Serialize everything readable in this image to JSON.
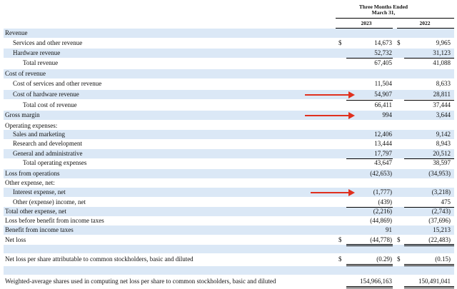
{
  "header": {
    "period_line1": "Three Months Ended",
    "period_line2": "March 31,",
    "year1": "2023",
    "year2": "2022"
  },
  "rows": [
    {
      "label": "Revenue",
      "indent": 0,
      "v1": "",
      "v2": "",
      "shade": true
    },
    {
      "label": "Services and other revenue",
      "indent": 1,
      "v1": "14,673",
      "v2": "9,965",
      "cur1": "$",
      "cur2": "$",
      "shade": false
    },
    {
      "label": "Hardware revenue",
      "indent": 1,
      "v1": "52,732",
      "v2": "31,123",
      "shade": true
    },
    {
      "label": "Total revenue",
      "indent": 2,
      "v1": "67,405",
      "v2": "41,088",
      "shade": false
    },
    {
      "label": "Cost of revenue",
      "indent": 0,
      "v1": "",
      "v2": "",
      "shade": true
    },
    {
      "label": "Cost of services and other revenue",
      "indent": 1,
      "v1": "11,504",
      "v2": "8,633",
      "shade": false
    },
    {
      "label": "Cost of hardware revenue",
      "indent": 1,
      "v1": "54,907",
      "v2": "28,811",
      "shade": true
    },
    {
      "label": "Total cost of revenue",
      "indent": 2,
      "v1": "66,411",
      "v2": "37,444",
      "shade": false
    },
    {
      "label": "Gross margin",
      "indent": 0,
      "v1": "994",
      "v2": "3,644",
      "shade": true
    },
    {
      "label": "Operating expenses:",
      "indent": 0,
      "v1": "",
      "v2": "",
      "shade": false
    },
    {
      "label": "Sales and marketing",
      "indent": 1,
      "v1": "12,406",
      "v2": "9,142",
      "shade": true
    },
    {
      "label": "Research and development",
      "indent": 1,
      "v1": "13,444",
      "v2": "8,943",
      "shade": false
    },
    {
      "label": "General and administrative",
      "indent": 1,
      "v1": "17,797",
      "v2": "20,512",
      "shade": true
    },
    {
      "label": "Total operating expenses",
      "indent": 2,
      "v1": "43,647",
      "v2": "38,597",
      "shade": false
    },
    {
      "label": "Loss from operations",
      "indent": 0,
      "v1": "(42,653)",
      "v2": "(34,953)",
      "shade": true
    },
    {
      "label": "Other expense, net:",
      "indent": 0,
      "v1": "",
      "v2": "",
      "shade": false
    },
    {
      "label": "Interest expense, net",
      "indent": 1,
      "v1": "(1,777)",
      "v2": "(3,218)",
      "shade": true
    },
    {
      "label": "Other (expense) income, net",
      "indent": 1,
      "v1": "(439)",
      "v2": "475",
      "shade": false
    },
    {
      "label": "Total other expense, net",
      "indent": 0,
      "v1": "(2,216)",
      "v2": "(2,743)",
      "shade": true
    },
    {
      "label": "Loss before benefit from income taxes",
      "indent": 0,
      "v1": "(44,869)",
      "v2": "(37,696)",
      "shade": false
    },
    {
      "label": "Benefit from income taxes",
      "indent": 0,
      "v1": "91",
      "v2": "15,213",
      "shade": true
    },
    {
      "label": "Net loss",
      "indent": 0,
      "v1": "(44,778)",
      "v2": "(22,483)",
      "cur1": "$",
      "cur2": "$",
      "shade": false
    },
    {
      "label": "",
      "indent": 0,
      "v1": "",
      "v2": "",
      "shade": true,
      "blank": true
    },
    {
      "label": "Net loss per share attributable to common stockholders, basic and diluted",
      "indent": 0,
      "v1": "(0.29)",
      "v2": "(0.15)",
      "cur1": "$",
      "cur2": "$",
      "shade": false,
      "gap": true
    },
    {
      "label": "",
      "indent": 0,
      "v1": "",
      "v2": "",
      "shade": true,
      "blank": true
    },
    {
      "label": "Weighted-average shares used in computing net loss per share to common stockholders, basic and diluted",
      "indent": 0,
      "v1": "154,966,163",
      "v2": "150,491,041",
      "shade": false,
      "gap": true
    }
  ],
  "annotations": {
    "arrow_color": "#e0301e",
    "arrows": [
      {
        "points_to": "Cost of hardware revenue 2023 value"
      },
      {
        "points_to": "Gross margin 2023 value"
      },
      {
        "points_to": "Interest expense, net 2023 value"
      }
    ]
  },
  "colors": {
    "row_shade": "#dbe8f6",
    "text": "#111111",
    "arrow": "#e0301e"
  }
}
